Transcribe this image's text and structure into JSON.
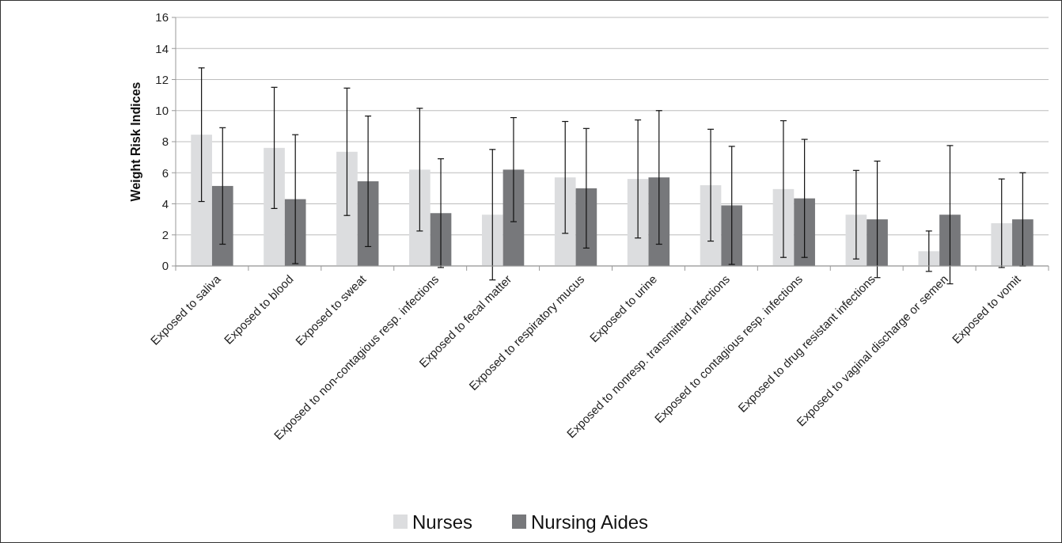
{
  "chart_data": {
    "type": "bar",
    "ylabel": "Weight Risk Indices",
    "categories": [
      "Exposed to saliva",
      "Exposed to blood",
      "Exposed to sweat",
      "Exposed to non-contagious resp. infections",
      "Exposed to fecal matter",
      "Exposed to respiratory mucus",
      "Exposed to urine",
      "Exposed to nonresp. transmitted infections",
      "Exposed to contagious resp. infections",
      "Exposed to drug resistant infections",
      "Exposed to vaginal discharge or semen",
      "Exposed to vomit"
    ],
    "series": [
      {
        "name": "Nurses",
        "color": "#dcdddf",
        "values": [
          8.45,
          7.6,
          7.35,
          6.2,
          3.3,
          5.7,
          5.6,
          5.2,
          4.95,
          3.3,
          0.95,
          2.75
        ],
        "errors": [
          4.3,
          3.9,
          4.1,
          3.95,
          4.2,
          3.6,
          3.8,
          3.6,
          4.4,
          2.85,
          1.3,
          2.85
        ]
      },
      {
        "name": "Nursing Aides",
        "color": "#77787b",
        "values": [
          5.15,
          4.3,
          5.45,
          3.4,
          6.2,
          5.0,
          5.7,
          3.9,
          4.35,
          3.0,
          3.3,
          3.0
        ],
        "errors": [
          3.75,
          4.15,
          4.2,
          3.5,
          3.35,
          3.85,
          4.3,
          3.8,
          3.8,
          3.75,
          4.45,
          3.0
        ]
      }
    ],
    "ylim": [
      0,
      16
    ],
    "yticks": [
      0,
      2,
      4,
      6,
      8,
      10,
      12,
      14,
      16
    ],
    "grid": "y",
    "legend": "bottom"
  }
}
